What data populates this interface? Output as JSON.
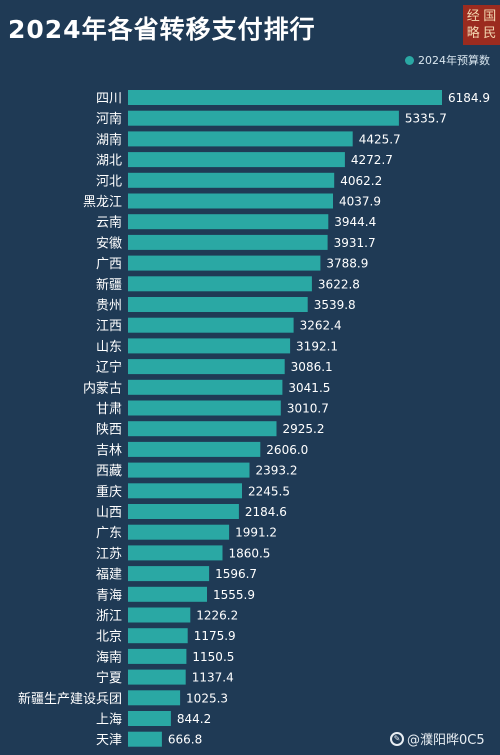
{
  "title": "2024年各省转移支付排行",
  "logo_text": [
    "经",
    "国",
    "略",
    "民"
  ],
  "legend_label": "2024年预算数",
  "watermark": "@濮阳晔0C5",
  "colors": {
    "background": "#1f3a55",
    "bar": "#2aa8a4",
    "bar_light": "#35b8b2"
  },
  "chart_data": {
    "type": "bar",
    "orientation": "horizontal",
    "title": "2024年各省转移支付排行",
    "legend": [
      "2024年预算数"
    ],
    "categories": [
      "四川",
      "河南",
      "湖南",
      "湖北",
      "河北",
      "黑龙江",
      "云南",
      "安徽",
      "广西",
      "新疆",
      "贵州",
      "江西",
      "山东",
      "辽宁",
      "内蒙古",
      "甘肃",
      "陕西",
      "吉林",
      "西藏",
      "重庆",
      "山西",
      "广东",
      "江苏",
      "福建",
      "青海",
      "浙江",
      "北京",
      "海南",
      "宁夏",
      "新疆生产建设兵团",
      "上海",
      "天津"
    ],
    "values": [
      6184.9,
      5335.7,
      4425.7,
      4272.7,
      4062.2,
      4037.9,
      3944.4,
      3931.7,
      3788.9,
      3622.8,
      3539.8,
      3262.4,
      3192.1,
      3086.1,
      3041.5,
      3010.7,
      2925.2,
      2606.0,
      2393.2,
      2245.5,
      2184.6,
      1991.2,
      1860.5,
      1596.7,
      1555.9,
      1226.2,
      1175.9,
      1150.5,
      1137.4,
      1025.3,
      844.2,
      666.8
    ],
    "value_labels": [
      "6184.9",
      "5335.7",
      "4425.7",
      "4272.7",
      "4062.2",
      "4037.9",
      "3944.4",
      "3931.7",
      "3788.9",
      "3622.8",
      "3539.8",
      "3262.4",
      "3192.1",
      "3086.1",
      "3041.5",
      "3010.7",
      "2925.2",
      "2606.0",
      "2393.2",
      "2245.5",
      "2184.6",
      "1991.2",
      "1860.5",
      "1596.7",
      "1555.9",
      "1226.2",
      "1175.9",
      "1150.5",
      "1137.4",
      "1025.3",
      "844.2",
      "666.8"
    ]
  }
}
